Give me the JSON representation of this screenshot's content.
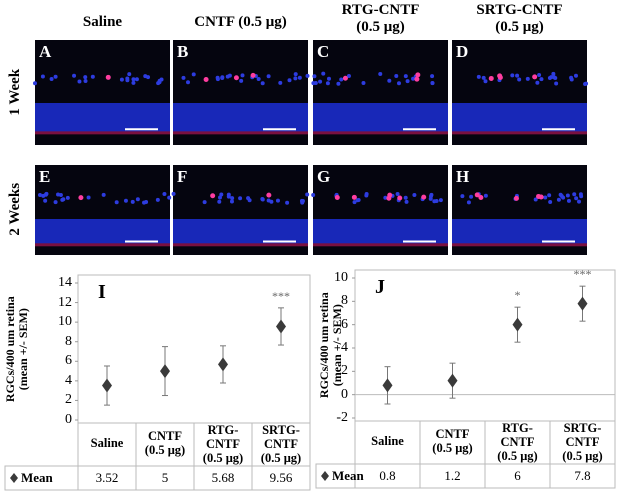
{
  "figure": {
    "columns": [
      "Saline",
      "CNTF (0.5 μg)",
      "RTG-CNTF\n(0.5 μg)",
      "SRTG-CNTF\n(0.5 μg)"
    ],
    "rows": [
      "1 Week",
      "2 Weeks"
    ],
    "panels": [
      "A",
      "B",
      "C",
      "D",
      "E",
      "F",
      "G",
      "H"
    ]
  },
  "chart_data": [
    {
      "type": "errorbar",
      "panel_label": "I",
      "y_label": "RGCs/400 um retina\n(mean +/- SEM)",
      "categories": [
        "Saline",
        "CNTF\n(0.5 μg)",
        "RTG-\nCNTF\n(0.5 μg)",
        "SRTG-\nCNTF\n(0.5 μg)"
      ],
      "series": [
        {
          "name": "Mean",
          "color": "#3a3a3a",
          "values": [
            3.52,
            5,
            5.68,
            9.56
          ],
          "errors": [
            2,
            2.5,
            1.9,
            1.9
          ]
        }
      ],
      "significance": [
        null,
        null,
        null,
        "***"
      ],
      "ylim": [
        0,
        14
      ],
      "yticks": [
        0,
        2,
        4,
        6,
        8,
        10,
        12,
        14
      ]
    },
    {
      "type": "errorbar",
      "panel_label": "J",
      "y_label": "RGCs/400 um retina\n(mean +/- SEM)",
      "categories": [
        "Saline",
        "CNTF\n(0.5 μg)",
        "RTG-\nCNTF\n(0.5 μg)",
        "SRTG-\nCNTF\n(0.5 μg)"
      ],
      "series": [
        {
          "name": "Mean",
          "color": "#3a3a3a",
          "values": [
            0.8,
            1.2,
            6,
            7.8
          ],
          "errors": [
            1.6,
            1.5,
            1.5,
            1.5
          ]
        }
      ],
      "significance": [
        null,
        null,
        "*",
        "***"
      ],
      "ylim": [
        -2,
        10
      ],
      "yticks": [
        -2,
        0,
        2,
        4,
        6,
        8,
        10
      ]
    }
  ]
}
